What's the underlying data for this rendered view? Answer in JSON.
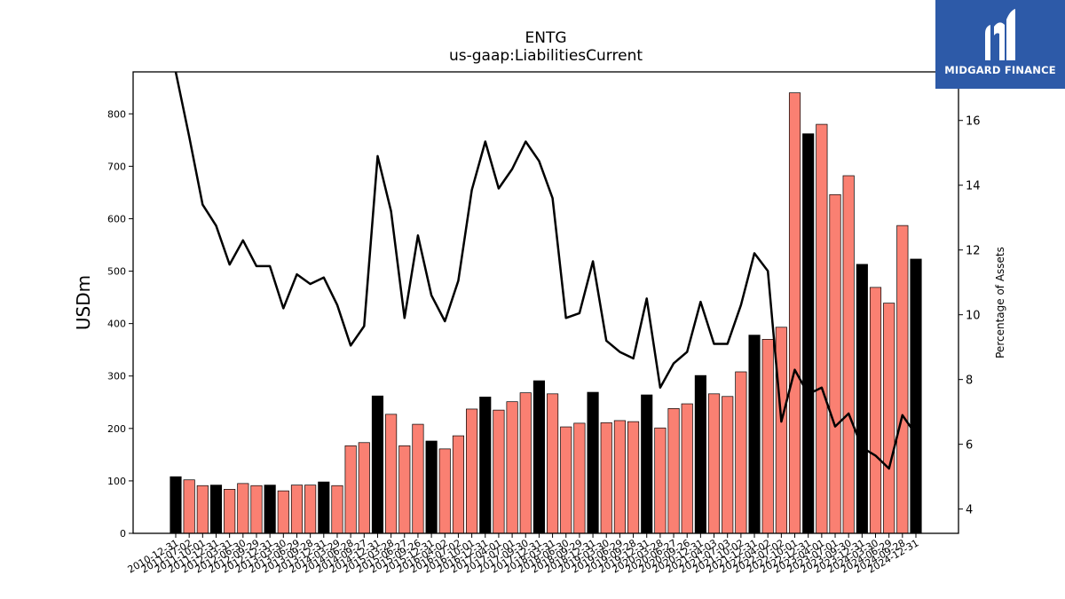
{
  "brand": {
    "name": "MIDGARD FINANCE",
    "color": "#2d5aa8"
  },
  "chart_data": {
    "type": "bar",
    "title": "ENTG",
    "subtitle": "us-gaap:LiabilitiesCurrent",
    "ylabel": "USDm",
    "y2label": "Percentage of Assets",
    "ylim": [
      0,
      880
    ],
    "y2lim": [
      3.25,
      17.5
    ],
    "yticks": [
      0,
      100,
      200,
      300,
      400,
      500,
      600,
      700,
      800
    ],
    "y2ticks": [
      4,
      6,
      8,
      10,
      12,
      14,
      16
    ],
    "colors": {
      "annual_bar": "#000000",
      "quarter_bar": "#fa8072",
      "line": "#000000"
    },
    "categories": [
      "2010-12-31",
      "2011-07-02",
      "2011-10-01",
      "2011-12-31",
      "2012-03-31",
      "2012-06-30",
      "2012-09-29",
      "2012-12-31",
      "2013-03-30",
      "2013-06-29",
      "2013-09-28",
      "2013-12-31",
      "2014-03-29",
      "2014-06-28",
      "2014-09-27",
      "2014-12-31",
      "2015-03-28",
      "2015-06-27",
      "2015-09-26",
      "2015-12-31",
      "2016-04-02",
      "2016-07-02",
      "2016-10-01",
      "2016-12-31",
      "2017-04-01",
      "2017-07-01",
      "2017-09-30",
      "2017-12-31",
      "2018-03-31",
      "2018-06-30",
      "2018-09-29",
      "2018-12-31",
      "2019-03-30",
      "2019-06-29",
      "2019-09-28",
      "2019-12-31",
      "2020-03-28",
      "2020-06-27",
      "2020-09-26",
      "2020-12-31",
      "2021-04-03",
      "2021-07-03",
      "2021-10-02",
      "2021-12-31",
      "2022-04-02",
      "2022-07-02",
      "2022-10-01",
      "2022-12-31",
      "2023-04-01",
      "2023-07-01",
      "2023-09-30",
      "2023-12-31",
      "2024-03-30",
      "2024-06-29",
      "2024-09-28",
      "2024-12-31"
    ],
    "series": [
      {
        "values": [
          108,
          102,
          91,
          92,
          84,
          95,
          91,
          92,
          81,
          92,
          92,
          98,
          91,
          167,
          173,
          262,
          227,
          167,
          208,
          176,
          161,
          186,
          237,
          260,
          235,
          251,
          268,
          291,
          266,
          203,
          210,
          269,
          211,
          215,
          213,
          264,
          201,
          238,
          247,
          301,
          266,
          261,
          308,
          378,
          370,
          393,
          840,
          762,
          780,
          646,
          682,
          513,
          469,
          439,
          587,
          523
        ],
        "annual": [
          true,
          false,
          false,
          true,
          false,
          false,
          false,
          true,
          false,
          false,
          false,
          true,
          false,
          false,
          false,
          true,
          false,
          false,
          false,
          true,
          false,
          false,
          false,
          true,
          false,
          false,
          false,
          true,
          false,
          false,
          false,
          true,
          false,
          false,
          false,
          true,
          false,
          false,
          false,
          true,
          false,
          false,
          false,
          true,
          false,
          false,
          false,
          true,
          false,
          false,
          false,
          true,
          false,
          false,
          false,
          true
        ]
      },
      {
        "values": [
          17.5,
          15.5,
          13.4,
          12.75,
          11.55,
          12.3,
          11.5,
          11.5,
          10.2,
          11.25,
          10.95,
          11.15,
          10.3,
          9.05,
          9.65,
          14.9,
          13.2,
          9.9,
          12.45,
          10.6,
          9.8,
          11.05,
          13.85,
          15.35,
          13.9,
          14.5,
          15.35,
          14.75,
          13.6,
          9.9,
          10.05,
          11.65,
          9.2,
          8.85,
          8.65,
          10.5,
          7.75,
          8.5,
          8.85,
          10.4,
          9.1,
          9.1,
          10.3,
          11.9,
          11.35,
          6.7,
          8.3,
          7.55,
          7.75,
          6.55,
          6.95,
          5.9,
          5.65,
          5.25,
          6.9,
          6.3
        ]
      }
    ]
  }
}
